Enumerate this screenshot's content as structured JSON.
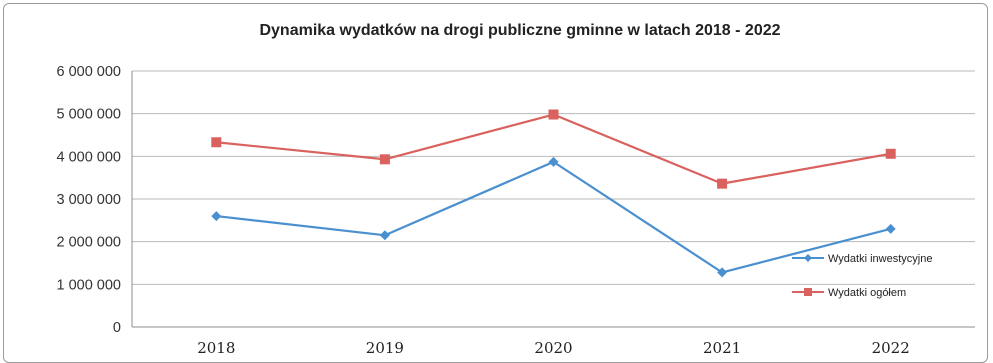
{
  "chart_data": {
    "type": "line",
    "title": "Dynamika wydatków na drogi publiczne gminne w latach 2018 - 2022",
    "categories": [
      "2018",
      "2019",
      "2020",
      "2021",
      "2022"
    ],
    "series": [
      {
        "name": "Wydatki inwestycyjne",
        "values": [
          2600000,
          2150000,
          3870000,
          1280000,
          2300000
        ],
        "color": "#4a8fcf"
      },
      {
        "name": "Wydatki ogółem",
        "values": [
          4330000,
          3930000,
          4980000,
          3360000,
          4060000
        ],
        "color": "#d9615e"
      }
    ],
    "ylim": [
      0,
      6000000
    ],
    "yticks": [
      "0",
      "1 000 000",
      "2 000 000",
      "3 000 000",
      "4 000 000",
      "5 000 000",
      "6 000 000"
    ],
    "grid": true,
    "legend_position": "right"
  }
}
